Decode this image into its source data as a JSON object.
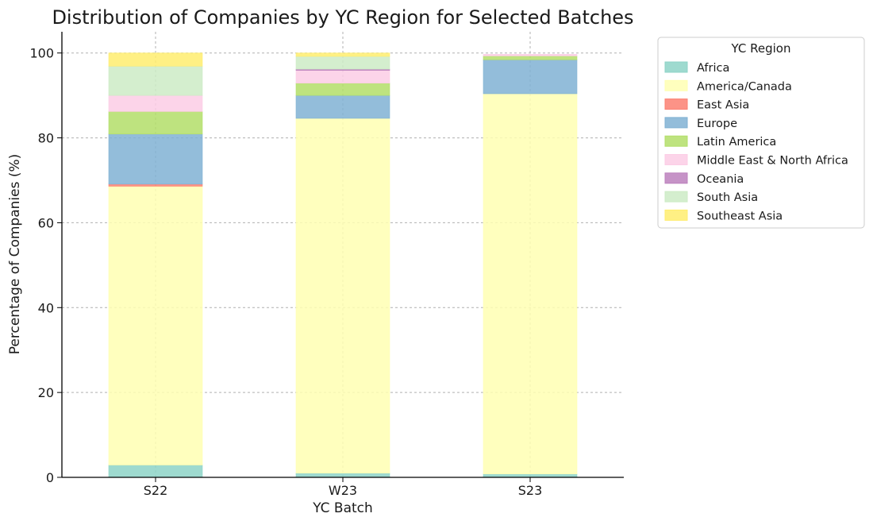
{
  "chart_data": {
    "type": "bar",
    "stacked": true,
    "title": "Distribution of Companies by YC Region for Selected Batches",
    "xlabel": "YC Batch",
    "ylabel": "Percentage of Companies (%)",
    "ylim": [
      0,
      105
    ],
    "yticks": [
      0,
      20,
      40,
      60,
      80,
      100
    ],
    "grid": true,
    "categories": [
      "S22",
      "W23",
      "S23"
    ],
    "legend": {
      "title": "YC Region",
      "placement": "upper-right-outside"
    },
    "series": [
      {
        "name": "Africa",
        "color": "#8dd3c7",
        "values": [
          2.9,
          1.0,
          0.8
        ]
      },
      {
        "name": "America/Canada",
        "color": "#ffffb3",
        "values": [
          65.7,
          83.6,
          89.6
        ]
      },
      {
        "name": "East Asia",
        "color": "#fb8072",
        "values": [
          0.5,
          0.0,
          0.0
        ]
      },
      {
        "name": "Europe",
        "color": "#80b1d3",
        "values": [
          11.8,
          5.4,
          8.0
        ]
      },
      {
        "name": "Latin America",
        "color": "#b3de69",
        "values": [
          5.3,
          2.9,
          0.9
        ]
      },
      {
        "name": "Middle East & North Africa",
        "color": "#fccde5",
        "values": [
          3.8,
          3.0,
          0.4
        ]
      },
      {
        "name": "Oceania",
        "color": "#bc80bd",
        "values": [
          0.0,
          0.3,
          0.0
        ]
      },
      {
        "name": "South Asia",
        "color": "#ccebc5",
        "values": [
          6.9,
          3.0,
          0.0
        ]
      },
      {
        "name": "Southeast Asia",
        "color": "#ffed6f",
        "values": [
          3.1,
          0.8,
          0.0
        ]
      }
    ]
  }
}
